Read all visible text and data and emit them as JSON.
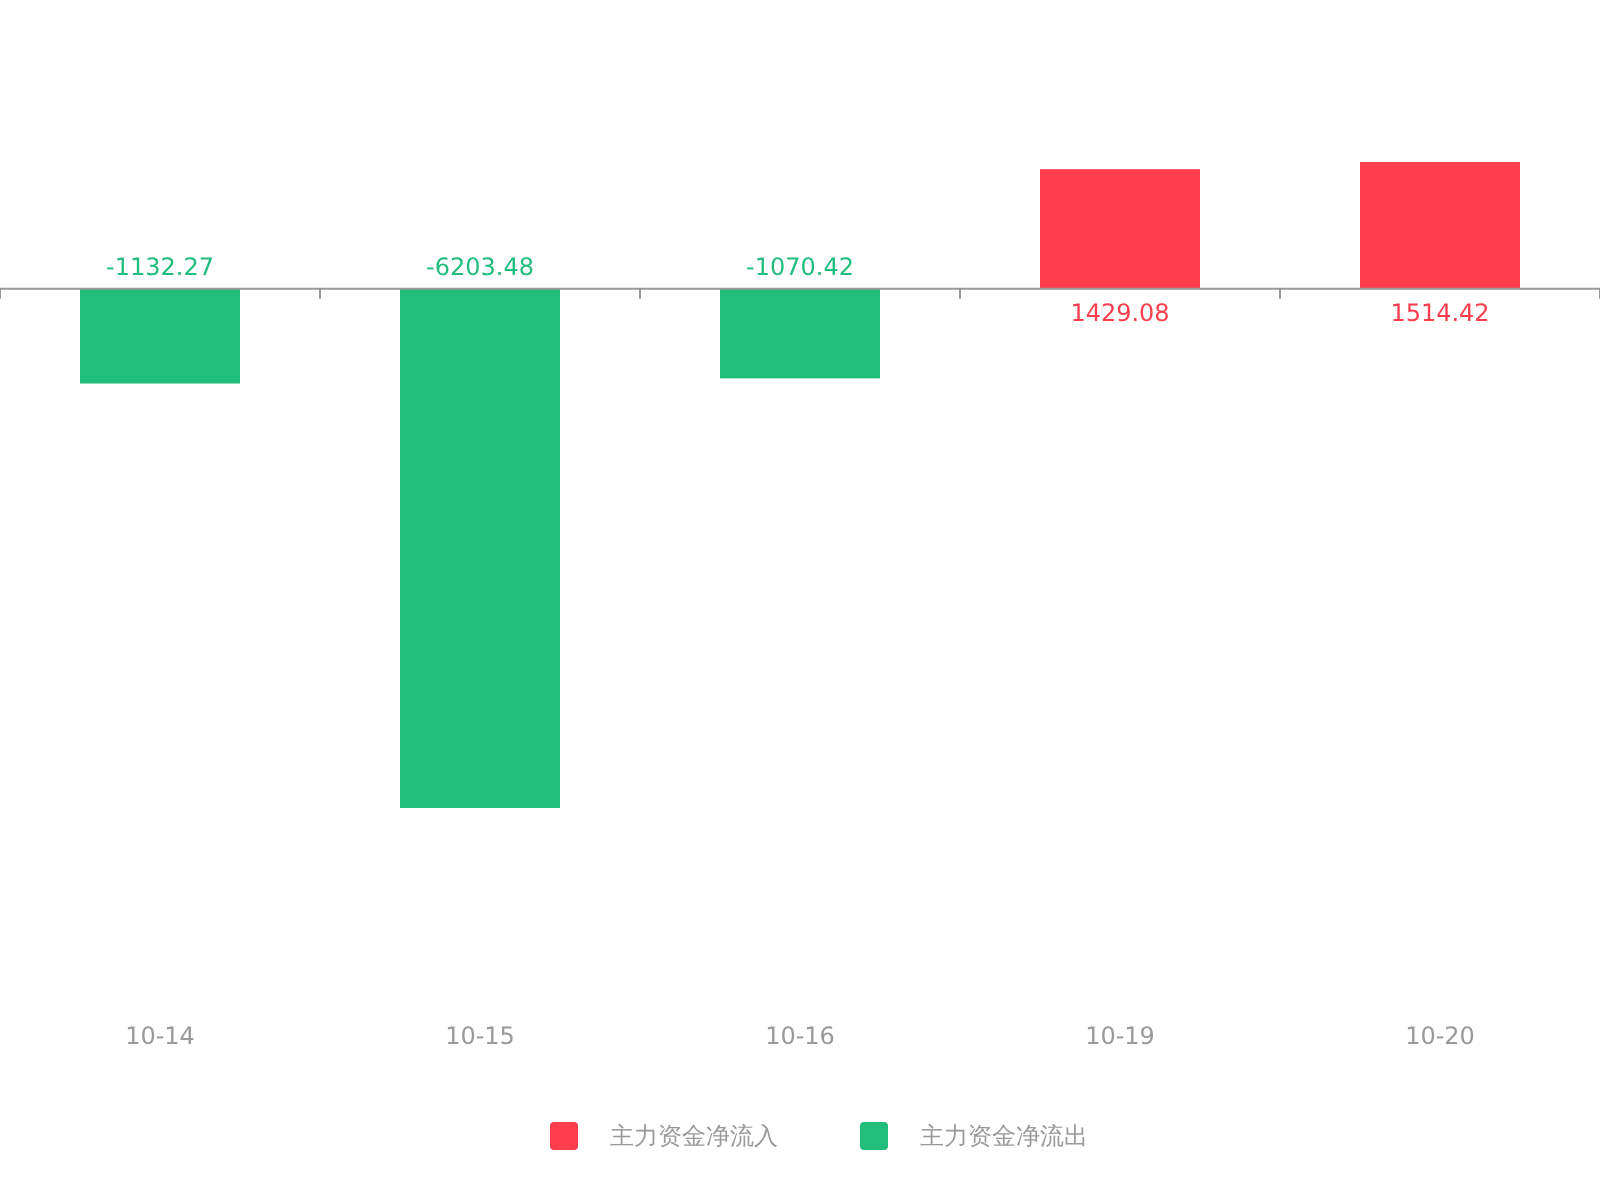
{
  "chart_data": {
    "type": "bar",
    "categories": [
      "10-14",
      "10-15",
      "10-16",
      "10-19",
      "10-20"
    ],
    "stacked": true,
    "data_labels": true,
    "legend": "bottom",
    "series": [
      {
        "name": "主力资金净流入",
        "color": "#fc3e4d",
        "values": [
          null,
          null,
          null,
          1429.08,
          1514.42
        ]
      },
      {
        "name": "主力资金净流出",
        "color": "#21bd7b",
        "values": [
          -1132.27,
          -6203.48,
          -1070.42,
          null,
          null
        ]
      }
    ]
  }
}
